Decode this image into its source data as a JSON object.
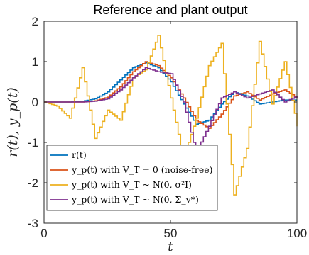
{
  "chart_data": {
    "type": "line",
    "title": "Reference and plant output",
    "xlabel": "t",
    "ylabel": "r(t), y_p(t)",
    "xlim": [
      0,
      100
    ],
    "ylim": [
      -3,
      2
    ],
    "xticks": [
      0,
      50,
      100
    ],
    "yticks": [
      -3,
      -2,
      -1,
      0,
      1,
      2
    ],
    "xtick_labels": [
      "0",
      "50",
      "100"
    ],
    "ytick_labels": [
      "-3",
      "-2",
      "-1",
      "0",
      "1",
      "2"
    ],
    "grid": false,
    "legend_position": "bottom-left",
    "series": [
      {
        "name": "r(t)",
        "color": "#0072BD",
        "x": [
          0,
          5,
          10,
          15,
          20,
          25,
          30,
          35,
          40,
          45,
          50,
          55,
          60,
          65,
          70,
          75,
          80,
          85,
          90,
          95,
          100
        ],
        "y": [
          0,
          0,
          0,
          0.02,
          0.08,
          0.25,
          0.55,
          0.85,
          0.97,
          0.85,
          0.5,
          -0.05,
          -0.55,
          -0.45,
          -0.05,
          0.25,
          0.15,
          -0.05,
          0,
          0.05,
          0.05
        ]
      },
      {
        "name": "y_p(t) with V_T = 0 (noise-free)",
        "color": "#D95319",
        "x": [
          0,
          5,
          10,
          15,
          20,
          25,
          30,
          35,
          40,
          45,
          50,
          55,
          60,
          65,
          70,
          75,
          80,
          85,
          90,
          95,
          100
        ],
        "y": [
          0,
          0,
          0,
          0,
          0.03,
          0.12,
          0.38,
          0.75,
          1.0,
          0.9,
          0.6,
          0.1,
          -0.45,
          -0.65,
          -0.3,
          0.15,
          0.25,
          0.05,
          0.2,
          0.3,
          0.1
        ]
      },
      {
        "name": "y_p(t) with V_T ~ N(0, σ²I)",
        "color": "#EDB120",
        "x": [
          0,
          5,
          10,
          15,
          20,
          25,
          30,
          35,
          40,
          45,
          50,
          55,
          60,
          65,
          70,
          75,
          80,
          85,
          90,
          95,
          100
        ],
        "y": [
          0,
          -0.1,
          -0.4,
          0.85,
          -0.9,
          -0.2,
          -0.45,
          0.6,
          0.8,
          1.65,
          0.1,
          -1.4,
          -0.4,
          0.9,
          1.45,
          -2.3,
          -1.15,
          1.5,
          -0.05,
          1.0,
          -0.6
        ]
      },
      {
        "name": "y_p(t) with V_T ~ N(0, Σ_v*)",
        "color": "#7E2F8E",
        "x": [
          0,
          5,
          10,
          15,
          20,
          25,
          30,
          35,
          40,
          45,
          50,
          55,
          60,
          65,
          70,
          75,
          80,
          85,
          90,
          95,
          100
        ],
        "y": [
          0,
          0,
          0,
          0,
          0.02,
          0.08,
          0.3,
          0.6,
          0.85,
          0.75,
          0.7,
          0.0,
          -1.25,
          -0.6,
          0.1,
          0.25,
          0.1,
          0.2,
          0.3,
          0.0,
          0.15
        ]
      }
    ]
  }
}
